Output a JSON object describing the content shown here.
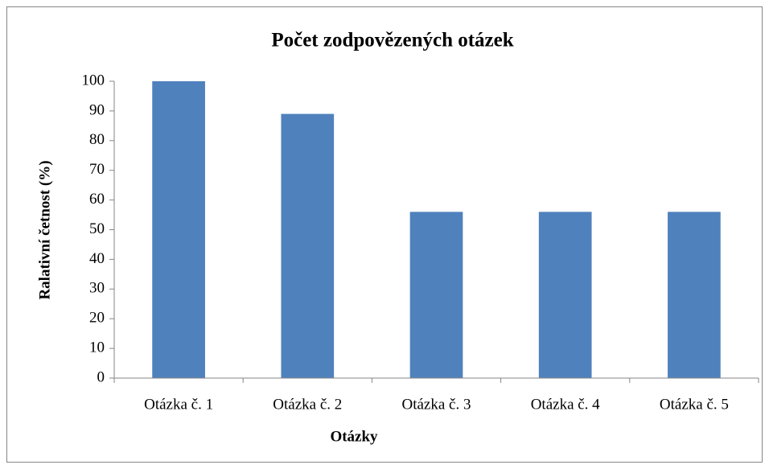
{
  "chart_data": {
    "type": "bar",
    "title": "Počet zodpovězených otázek",
    "x_label": "Otázky",
    "y_label": "Ralativní četnost (%)",
    "categories": [
      "Otázka č. 1",
      "Otázka č. 2",
      "Otázka č. 3",
      "Otázka č. 4",
      "Otázka č. 5"
    ],
    "values": [
      100,
      89,
      56,
      56,
      56
    ],
    "color": "#4f81bd",
    "ylim": [
      0,
      100
    ],
    "yticks": [
      0,
      10,
      20,
      30,
      40,
      50,
      60,
      70,
      80,
      90,
      100
    ],
    "grid": false
  }
}
